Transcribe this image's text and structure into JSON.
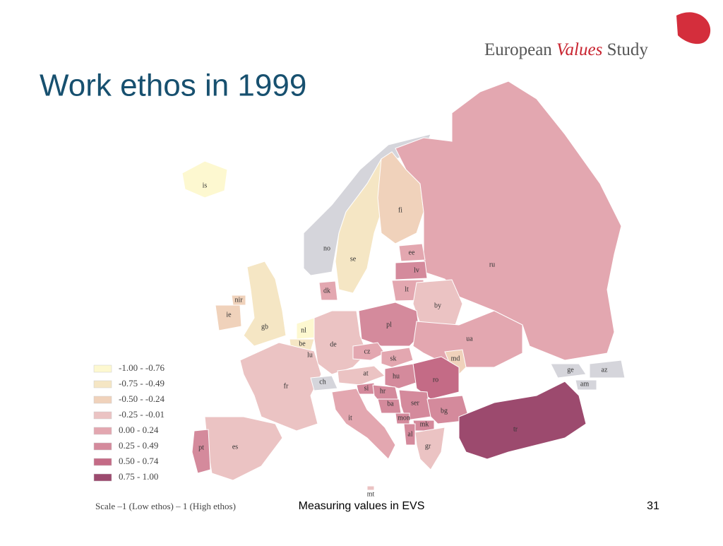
{
  "title": "Work ethos in 1999",
  "logo": {
    "word1": "European",
    "word2": "Values",
    "word3": "Study"
  },
  "legend": [
    {
      "label": "-1.00 - -0.76",
      "color": "#fdf8d0"
    },
    {
      "label": "-0.75 - -0.49",
      "color": "#f5e6c4"
    },
    {
      "label": "-0.50 - -0.24",
      "color": "#f0d2bb"
    },
    {
      "label": "-0.25 - -0.01",
      "color": "#ebc3c3"
    },
    {
      "label": "0.00 - 0.24",
      "color": "#e3a7b0"
    },
    {
      "label": "0.25 - 0.49",
      "color": "#d48a9c"
    },
    {
      "label": "0.50 - 0.74",
      "color": "#c46b86"
    },
    {
      "label": "0.75 - 1.00",
      "color": "#9c4a6e"
    }
  ],
  "countries": [
    {
      "label": "is",
      "color": "#fdf8d0"
    },
    {
      "label": "no",
      "color": "#d5d5db"
    },
    {
      "label": "se",
      "color": "#f5e6c4"
    },
    {
      "label": "fi",
      "color": "#f0d2bb"
    },
    {
      "label": "ru",
      "color": "#e3a7b0"
    },
    {
      "label": "ee",
      "color": "#e3a7b0"
    },
    {
      "label": "lv",
      "color": "#d48a9c"
    },
    {
      "label": "lt",
      "color": "#e3a7b0"
    },
    {
      "label": "by",
      "color": "#ebc3c3"
    },
    {
      "label": "dk",
      "color": "#e3a7b0"
    },
    {
      "label": "nir",
      "color": "#f0d2bb"
    },
    {
      "label": "ie",
      "color": "#f0d2bb"
    },
    {
      "label": "gb",
      "color": "#f5e6c4"
    },
    {
      "label": "nl",
      "color": "#fdf8d0"
    },
    {
      "label": "be",
      "color": "#f5e6c4"
    },
    {
      "label": "lu",
      "color": "#f5e6c4"
    },
    {
      "label": "de",
      "color": "#ebc3c3"
    },
    {
      "label": "pl",
      "color": "#d48a9c"
    },
    {
      "label": "cz",
      "color": "#e3a7b0"
    },
    {
      "label": "sk",
      "color": "#e3a7b0"
    },
    {
      "label": "ua",
      "color": "#e3a7b0"
    },
    {
      "label": "md",
      "color": "#f0d2bb"
    },
    {
      "label": "fr",
      "color": "#ebc3c3"
    },
    {
      "label": "ch",
      "color": "#d5d5db"
    },
    {
      "label": "at",
      "color": "#ebc3c3"
    },
    {
      "label": "hu",
      "color": "#d48a9c"
    },
    {
      "label": "ro",
      "color": "#c46b86"
    },
    {
      "label": "si",
      "color": "#d48a9c"
    },
    {
      "label": "hr",
      "color": "#d48a9c"
    },
    {
      "label": "ba",
      "color": "#d48a9c"
    },
    {
      "label": "ser",
      "color": "#d48a9c"
    },
    {
      "label": "bg",
      "color": "#d48a9c"
    },
    {
      "label": "mon",
      "color": "#d48a9c"
    },
    {
      "label": "mk",
      "color": "#d48a9c"
    },
    {
      "label": "al",
      "color": "#d48a9c"
    },
    {
      "label": "gr",
      "color": "#ebc3c3"
    },
    {
      "label": "it",
      "color": "#e3a7b0"
    },
    {
      "label": "es",
      "color": "#ebc3c3"
    },
    {
      "label": "pt",
      "color": "#d48a9c"
    },
    {
      "label": "mt",
      "color": "#ebc3c3"
    },
    {
      "label": "tr",
      "color": "#9c4a6e"
    },
    {
      "label": "ge",
      "color": "#d5d5db"
    },
    {
      "label": "az",
      "color": "#d5d5db"
    },
    {
      "label": "am",
      "color": "#d5d5db"
    }
  ],
  "scale_note": "Scale –1 (Low ethos) – 1 (High ethos)",
  "footer": "Measuring values in EVS",
  "page_number": "31"
}
